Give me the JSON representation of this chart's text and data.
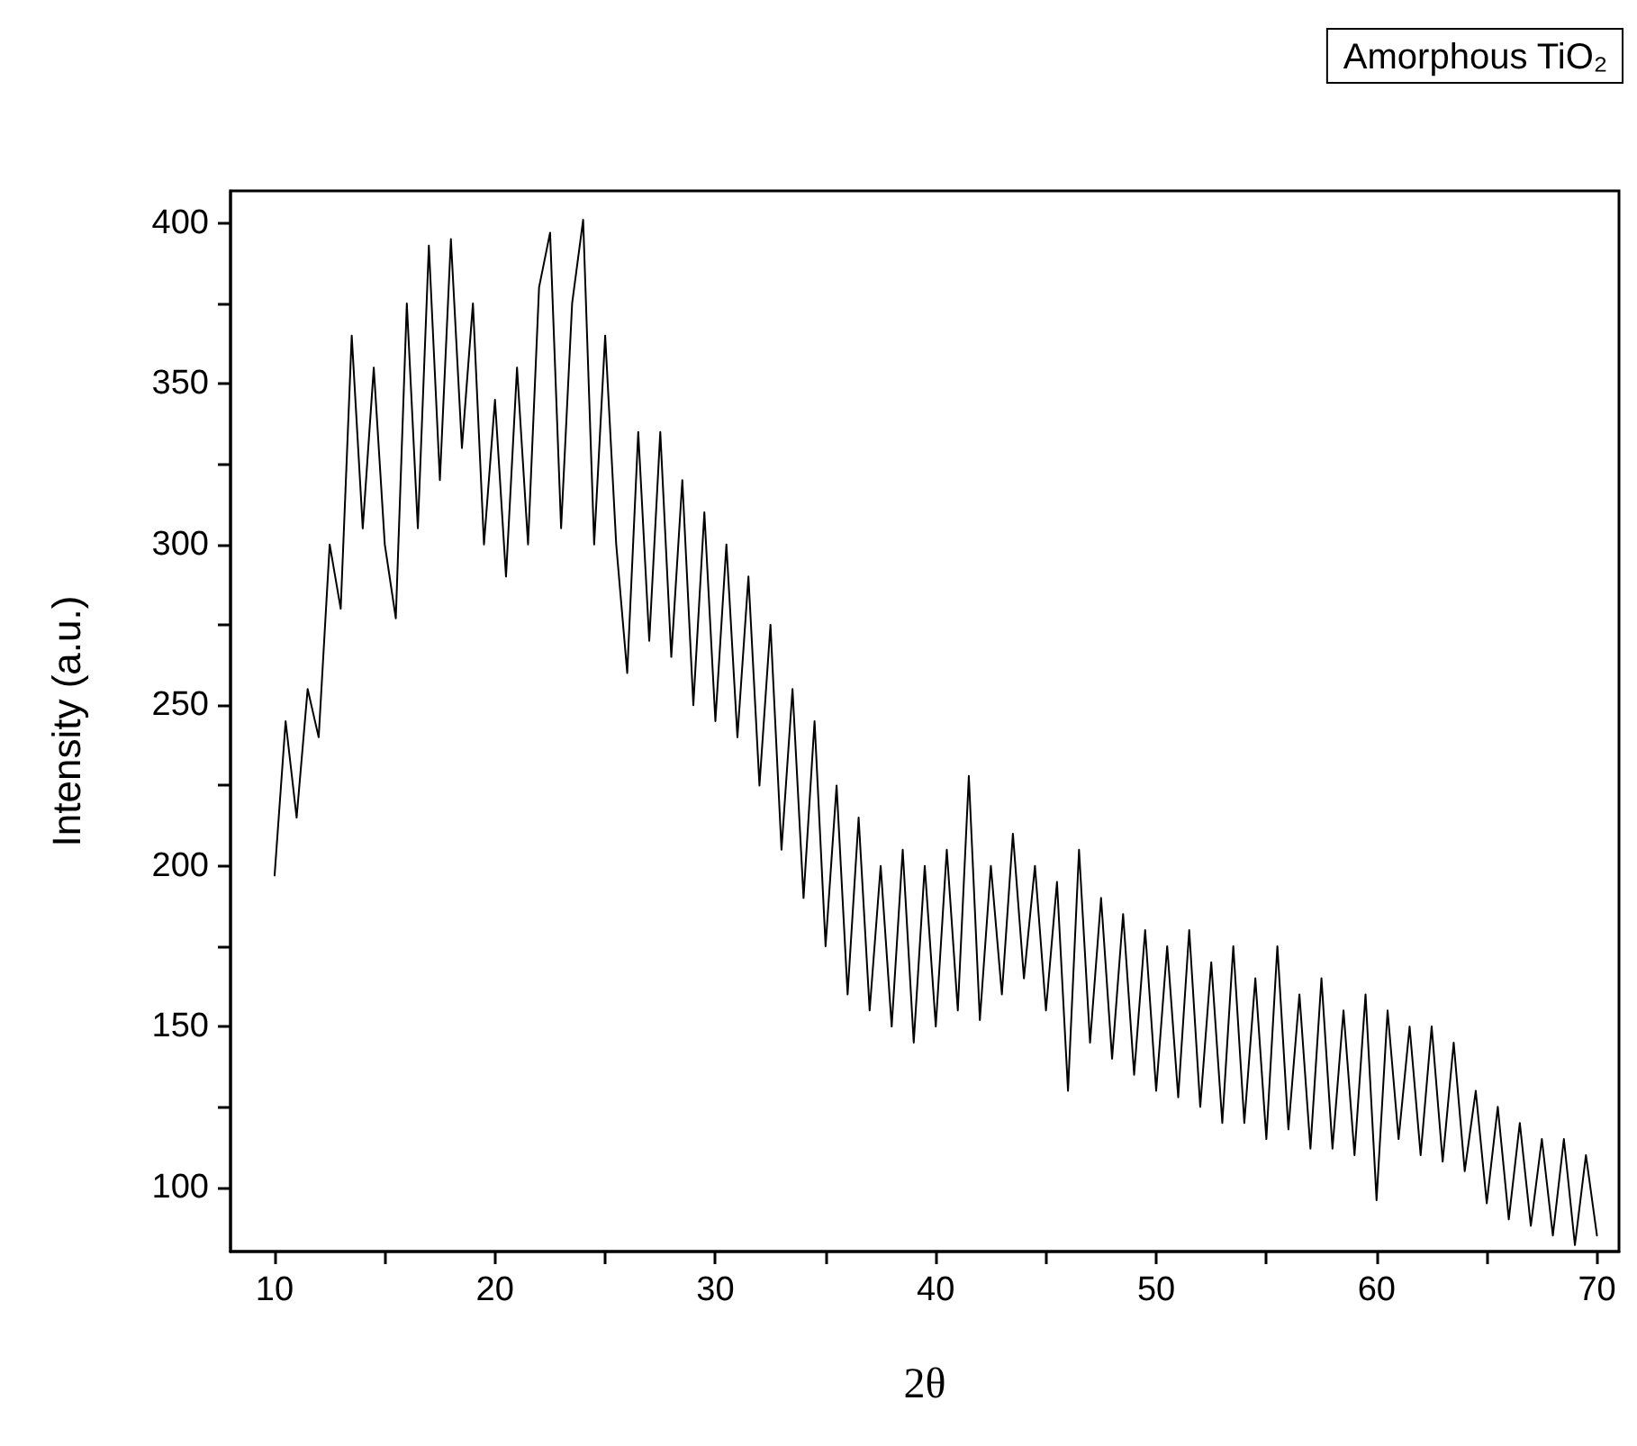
{
  "chart_data": {
    "type": "line",
    "xlabel": "2θ",
    "ylabel": "Intensity (a.u.)",
    "legend": "top right",
    "grid": false,
    "marker": "none",
    "line_style": "solid",
    "xlim": [
      8,
      71
    ],
    "ylim": [
      80,
      410
    ],
    "xticks": [
      10,
      {
        "value": 15,
        "label": null
      },
      20,
      {
        "value": 25,
        "label": null
      },
      30,
      {
        "value": 35,
        "label": null
      },
      40,
      {
        "value": 45,
        "label": null
      },
      50,
      {
        "value": 55,
        "label": null
      },
      60,
      {
        "value": 65,
        "label": null
      },
      70
    ],
    "yticks": [
      100,
      {
        "value": 125,
        "label": null
      },
      150,
      {
        "value": 175,
        "label": null
      },
      200,
      {
        "value": 225,
        "label": null
      },
      250,
      {
        "value": 275,
        "label": null
      },
      300,
      {
        "value": 325,
        "label": null
      },
      350,
      {
        "value": 375,
        "label": null
      },
      400
    ],
    "x": [
      10,
      10.5,
      11,
      11.5,
      12,
      12.5,
      13,
      13.5,
      14,
      14.5,
      15,
      15.5,
      16,
      16.5,
      17,
      17.5,
      18,
      18.5,
      19,
      19.5,
      20,
      20.5,
      21,
      21.5,
      22,
      22.5,
      23,
      23.5,
      24,
      24.5,
      25,
      25.5,
      26,
      26.5,
      27,
      27.5,
      28,
      28.5,
      29,
      29.5,
      30,
      30.5,
      31,
      31.5,
      32,
      32.5,
      33,
      33.5,
      34,
      34.5,
      35,
      35.5,
      36,
      36.5,
      37,
      37.5,
      38,
      38.5,
      39,
      39.5,
      40,
      40.5,
      41,
      41.5,
      42,
      42.5,
      43,
      43.5,
      44,
      44.5,
      45,
      45.5,
      46,
      46.5,
      47,
      47.5,
      48,
      48.5,
      49,
      49.5,
      50,
      50.5,
      51,
      51.5,
      52,
      52.5,
      53,
      53.5,
      54,
      54.5,
      55,
      55.5,
      56,
      56.5,
      57,
      57.5,
      58,
      58.5,
      59,
      59.5,
      60,
      60.5,
      61,
      61.5,
      62,
      62.5,
      63,
      63.5,
      64,
      64.5,
      65,
      65.5,
      66,
      66.5,
      67,
      67.5,
      68,
      68.5,
      69,
      69.5,
      70
    ],
    "series": [
      {
        "name": "Amorphous TiO₂",
        "color": "#000000",
        "values": [
          197,
          245,
          215,
          255,
          240,
          300,
          280,
          365,
          305,
          355,
          300,
          277,
          375,
          305,
          393,
          320,
          395,
          330,
          375,
          300,
          345,
          290,
          355,
          300,
          380,
          397,
          305,
          375,
          401,
          300,
          365,
          300,
          260,
          335,
          270,
          335,
          265,
          320,
          250,
          310,
          245,
          300,
          240,
          290,
          225,
          275,
          205,
          255,
          190,
          245,
          175,
          225,
          160,
          215,
          155,
          200,
          150,
          205,
          145,
          200,
          150,
          205,
          155,
          228,
          152,
          200,
          160,
          210,
          165,
          200,
          155,
          195,
          130,
          205,
          145,
          190,
          140,
          185,
          135,
          180,
          130,
          175,
          128,
          180,
          125,
          170,
          120,
          175,
          120,
          165,
          115,
          175,
          118,
          160,
          112,
          165,
          112,
          155,
          110,
          160,
          96,
          155,
          115,
          150,
          110,
          150,
          108,
          145,
          105,
          130,
          95,
          125,
          90,
          120,
          88,
          115,
          85,
          115,
          82,
          110,
          85
        ]
      }
    ]
  }
}
